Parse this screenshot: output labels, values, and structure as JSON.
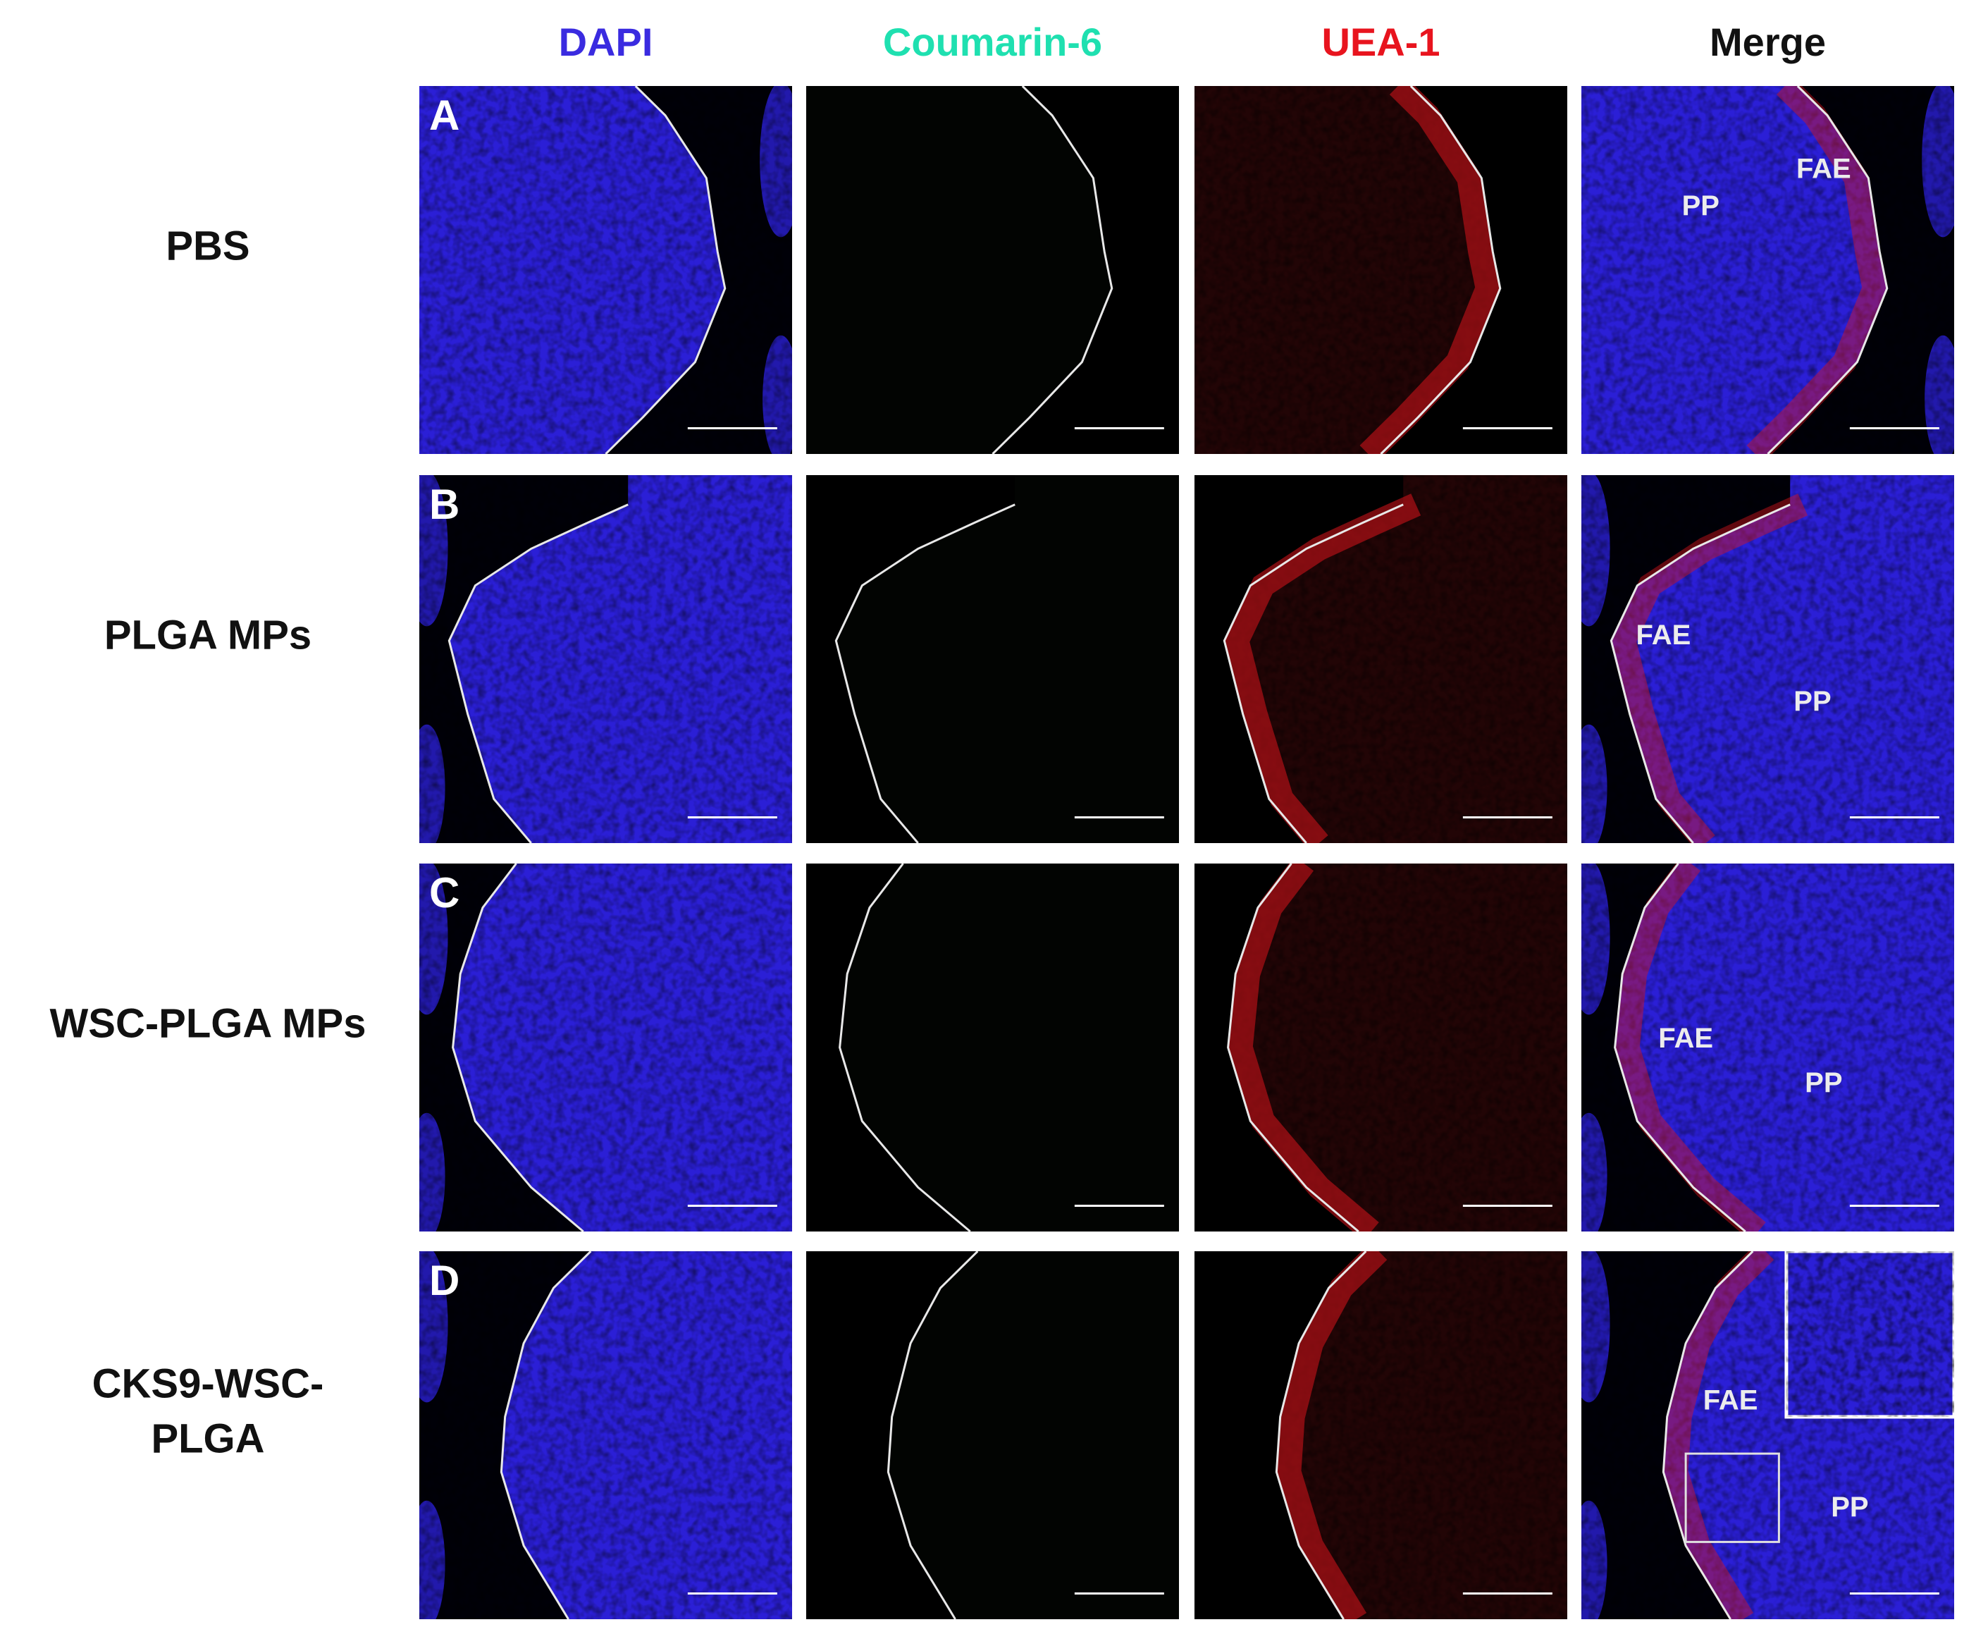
{
  "columns": [
    {
      "label": "DAPI",
      "color": "#3a2be0"
    },
    {
      "label": "Coumarin-6",
      "color": "#1fe0b0"
    },
    {
      "label": "UEA-1",
      "color": "#e8141e"
    },
    {
      "label": "Merge",
      "color": "#111111"
    }
  ],
  "rows": [
    {
      "letter": "A",
      "label_lines": [
        "PBS"
      ],
      "annotations": [
        "FAE",
        "PP"
      ]
    },
    {
      "letter": "B",
      "label_lines": [
        "PLGA MPs"
      ],
      "annotations": [
        "FAE",
        "PP"
      ]
    },
    {
      "letter": "C",
      "label_lines": [
        "WSC-PLGA MPs"
      ],
      "annotations": [
        "FAE",
        "PP"
      ]
    },
    {
      "letter": "D",
      "label_lines": [
        "CKS9-WSC-",
        "PLGA"
      ],
      "annotations": [
        "FAE",
        "PP"
      ]
    }
  ]
}
